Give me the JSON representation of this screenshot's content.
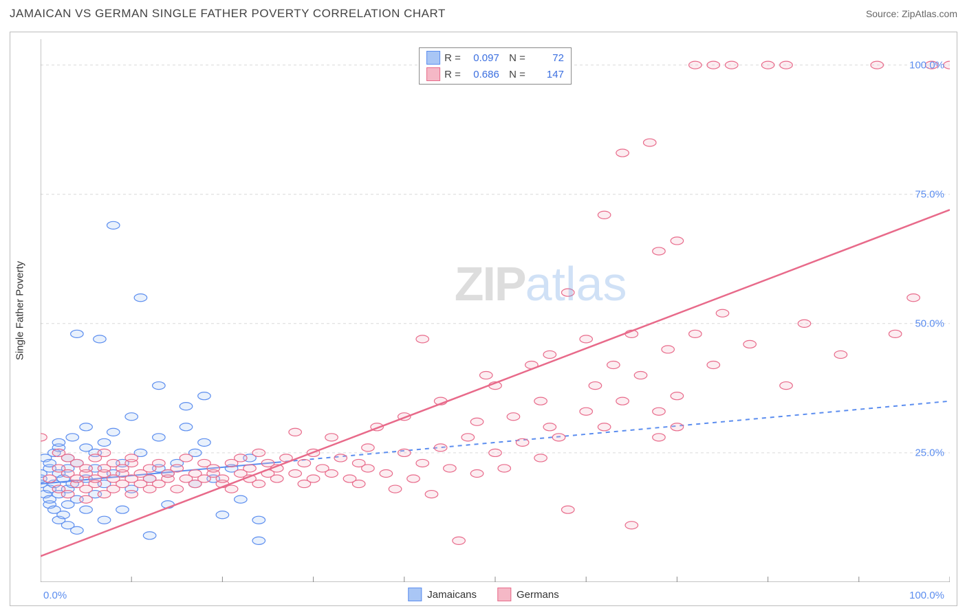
{
  "header": {
    "title": "JAMAICAN VS GERMAN SINGLE FATHER POVERTY CORRELATION CHART",
    "source_prefix": "Source: ",
    "source_name": "ZipAtlas.com"
  },
  "chart": {
    "type": "scatter",
    "ylabel": "Single Father Poverty",
    "xlim": [
      0,
      100
    ],
    "ylim": [
      0,
      105
    ],
    "y_ticks": [
      25,
      50,
      75,
      100
    ],
    "y_tick_labels": [
      "25.0%",
      "50.0%",
      "75.0%",
      "100.0%"
    ],
    "x_tick_min_label": "0.0%",
    "x_tick_max_label": "100.0%",
    "x_minor_ticks": [
      0,
      10,
      20,
      30,
      40,
      50,
      60,
      70,
      80,
      90,
      100
    ],
    "grid_color": "#d9d9d9",
    "axis_color": "#888888",
    "tick_label_color": "#5b8def",
    "marker_radius": 7,
    "marker_stroke_width": 1.2,
    "marker_fill_opacity": 0.25,
    "watermark": {
      "part1": "ZIP",
      "part2": "atlas"
    },
    "series": [
      {
        "id": "jamaicans",
        "label": "Jamaicans",
        "color_stroke": "#5b8def",
        "color_fill": "#a9c6f5",
        "R": "0.097",
        "N": "72",
        "trend": {
          "x1": 0,
          "y1": 19,
          "x2": 100,
          "y2": 35,
          "style": "solid-then-dashed",
          "solid_until_x": 26,
          "width": 2
        },
        "points": [
          [
            0,
            19
          ],
          [
            0,
            20
          ],
          [
            0,
            21
          ],
          [
            0.5,
            17
          ],
          [
            0.5,
            24
          ],
          [
            1,
            15
          ],
          [
            1,
            16
          ],
          [
            1,
            18
          ],
          [
            1,
            22
          ],
          [
            1,
            23
          ],
          [
            1.5,
            14
          ],
          [
            1.5,
            19
          ],
          [
            1.5,
            25
          ],
          [
            2,
            12
          ],
          [
            2,
            17
          ],
          [
            2,
            21
          ],
          [
            2,
            26
          ],
          [
            2,
            27
          ],
          [
            2.5,
            13
          ],
          [
            2.5,
            20
          ],
          [
            3,
            11
          ],
          [
            3,
            15
          ],
          [
            3,
            18
          ],
          [
            3,
            22
          ],
          [
            3,
            24
          ],
          [
            3.5,
            19
          ],
          [
            3.5,
            28
          ],
          [
            4,
            10
          ],
          [
            4,
            16
          ],
          [
            4,
            23
          ],
          [
            4,
            48
          ],
          [
            5,
            14
          ],
          [
            5,
            20
          ],
          [
            5,
            26
          ],
          [
            5,
            30
          ],
          [
            6,
            17
          ],
          [
            6,
            22
          ],
          [
            6,
            25
          ],
          [
            6.5,
            47
          ],
          [
            7,
            12
          ],
          [
            7,
            19
          ],
          [
            7,
            27
          ],
          [
            8,
            21
          ],
          [
            8,
            29
          ],
          [
            8,
            69
          ],
          [
            9,
            14
          ],
          [
            9,
            23
          ],
          [
            10,
            18
          ],
          [
            10,
            32
          ],
          [
            11,
            25
          ],
          [
            11,
            55
          ],
          [
            12,
            9
          ],
          [
            12,
            20
          ],
          [
            13,
            22
          ],
          [
            13,
            28
          ],
          [
            13,
            38
          ],
          [
            14,
            15
          ],
          [
            14,
            21
          ],
          [
            15,
            23
          ],
          [
            16,
            30
          ],
          [
            16,
            34
          ],
          [
            17,
            19
          ],
          [
            17,
            25
          ],
          [
            18,
            27
          ],
          [
            18,
            36
          ],
          [
            19,
            20
          ],
          [
            20,
            13
          ],
          [
            21,
            22
          ],
          [
            22,
            16
          ],
          [
            23,
            24
          ],
          [
            24,
            8
          ],
          [
            24,
            12
          ]
        ]
      },
      {
        "id": "germans",
        "label": "Germans",
        "color_stroke": "#e86a8a",
        "color_fill": "#f5b8c6",
        "R": "0.686",
        "N": "147",
        "trend": {
          "x1": 0,
          "y1": 5,
          "x2": 100,
          "y2": 72,
          "style": "solid",
          "width": 2.5
        },
        "points": [
          [
            0,
            28
          ],
          [
            1,
            20
          ],
          [
            2,
            18
          ],
          [
            2,
            22
          ],
          [
            2,
            25
          ],
          [
            3,
            17
          ],
          [
            3,
            21
          ],
          [
            3,
            24
          ],
          [
            4,
            19
          ],
          [
            4,
            20
          ],
          [
            4,
            23
          ],
          [
            5,
            16
          ],
          [
            5,
            18
          ],
          [
            5,
            21
          ],
          [
            5,
            22
          ],
          [
            6,
            19
          ],
          [
            6,
            20
          ],
          [
            6,
            24
          ],
          [
            7,
            17
          ],
          [
            7,
            21
          ],
          [
            7,
            22
          ],
          [
            7,
            25
          ],
          [
            8,
            18
          ],
          [
            8,
            20
          ],
          [
            8,
            23
          ],
          [
            9,
            19
          ],
          [
            9,
            21
          ],
          [
            9,
            22
          ],
          [
            10,
            17
          ],
          [
            10,
            20
          ],
          [
            10,
            23
          ],
          [
            10,
            24
          ],
          [
            11,
            19
          ],
          [
            11,
            21
          ],
          [
            12,
            18
          ],
          [
            12,
            20
          ],
          [
            12,
            22
          ],
          [
            13,
            19
          ],
          [
            13,
            23
          ],
          [
            14,
            20
          ],
          [
            14,
            21
          ],
          [
            15,
            18
          ],
          [
            15,
            22
          ],
          [
            16,
            20
          ],
          [
            16,
            24
          ],
          [
            17,
            19
          ],
          [
            17,
            21
          ],
          [
            18,
            20
          ],
          [
            18,
            23
          ],
          [
            19,
            21
          ],
          [
            19,
            22
          ],
          [
            20,
            19
          ],
          [
            20,
            20
          ],
          [
            21,
            18
          ],
          [
            21,
            23
          ],
          [
            22,
            21
          ],
          [
            22,
            24
          ],
          [
            23,
            20
          ],
          [
            23,
            22
          ],
          [
            24,
            19
          ],
          [
            24,
            25
          ],
          [
            25,
            21
          ],
          [
            25,
            23
          ],
          [
            26,
            20
          ],
          [
            26,
            22
          ],
          [
            27,
            24
          ],
          [
            28,
            21
          ],
          [
            28,
            29
          ],
          [
            29,
            19
          ],
          [
            29,
            23
          ],
          [
            30,
            20
          ],
          [
            30,
            25
          ],
          [
            31,
            22
          ],
          [
            32,
            21
          ],
          [
            32,
            28
          ],
          [
            33,
            24
          ],
          [
            34,
            20
          ],
          [
            35,
            19
          ],
          [
            35,
            23
          ],
          [
            36,
            22
          ],
          [
            36,
            26
          ],
          [
            37,
            30
          ],
          [
            38,
            21
          ],
          [
            39,
            18
          ],
          [
            40,
            25
          ],
          [
            40,
            32
          ],
          [
            41,
            20
          ],
          [
            42,
            23
          ],
          [
            42,
            47
          ],
          [
            43,
            17
          ],
          [
            44,
            26
          ],
          [
            44,
            35
          ],
          [
            45,
            22
          ],
          [
            46,
            8
          ],
          [
            47,
            28
          ],
          [
            48,
            21
          ],
          [
            48,
            31
          ],
          [
            49,
            40
          ],
          [
            50,
            25
          ],
          [
            50,
            38
          ],
          [
            51,
            22
          ],
          [
            52,
            32
          ],
          [
            53,
            27
          ],
          [
            54,
            42
          ],
          [
            55,
            24
          ],
          [
            55,
            35
          ],
          [
            56,
            30
          ],
          [
            56,
            44
          ],
          [
            57,
            28
          ],
          [
            58,
            14
          ],
          [
            58,
            56
          ],
          [
            60,
            33
          ],
          [
            60,
            47
          ],
          [
            61,
            38
          ],
          [
            62,
            30
          ],
          [
            62,
            71
          ],
          [
            63,
            42
          ],
          [
            64,
            35
          ],
          [
            64,
            83
          ],
          [
            65,
            11
          ],
          [
            65,
            48
          ],
          [
            66,
            40
          ],
          [
            67,
            85
          ],
          [
            68,
            28
          ],
          [
            68,
            64
          ],
          [
            69,
            45
          ],
          [
            70,
            36
          ],
          [
            70,
            66
          ],
          [
            72,
            48
          ],
          [
            72,
            100
          ],
          [
            74,
            42
          ],
          [
            74,
            100
          ],
          [
            75,
            52
          ],
          [
            76,
            100
          ],
          [
            78,
            46
          ],
          [
            80,
            100
          ],
          [
            82,
            38
          ],
          [
            82,
            100
          ],
          [
            84,
            50
          ],
          [
            88,
            44
          ],
          [
            92,
            100
          ],
          [
            94,
            48
          ],
          [
            96,
            55
          ],
          [
            98,
            100
          ],
          [
            100,
            100
          ],
          [
            68,
            33
          ],
          [
            70,
            30
          ]
        ]
      }
    ],
    "bottom_legend": [
      {
        "label": "Jamaicans",
        "fill": "#a9c6f5",
        "stroke": "#5b8def"
      },
      {
        "label": "Germans",
        "fill": "#f5b8c6",
        "stroke": "#e86a8a"
      }
    ],
    "stats_box": {
      "rows": [
        {
          "fill": "#a9c6f5",
          "stroke": "#5b8def",
          "r_label": "R =",
          "r_val": "0.097",
          "n_label": "N =",
          "n_val": "72"
        },
        {
          "fill": "#f5b8c6",
          "stroke": "#e86a8a",
          "r_label": "R =",
          "r_val": "0.686",
          "n_label": "N =",
          "n_val": "147"
        }
      ],
      "value_color": "#3b6fe0"
    }
  }
}
